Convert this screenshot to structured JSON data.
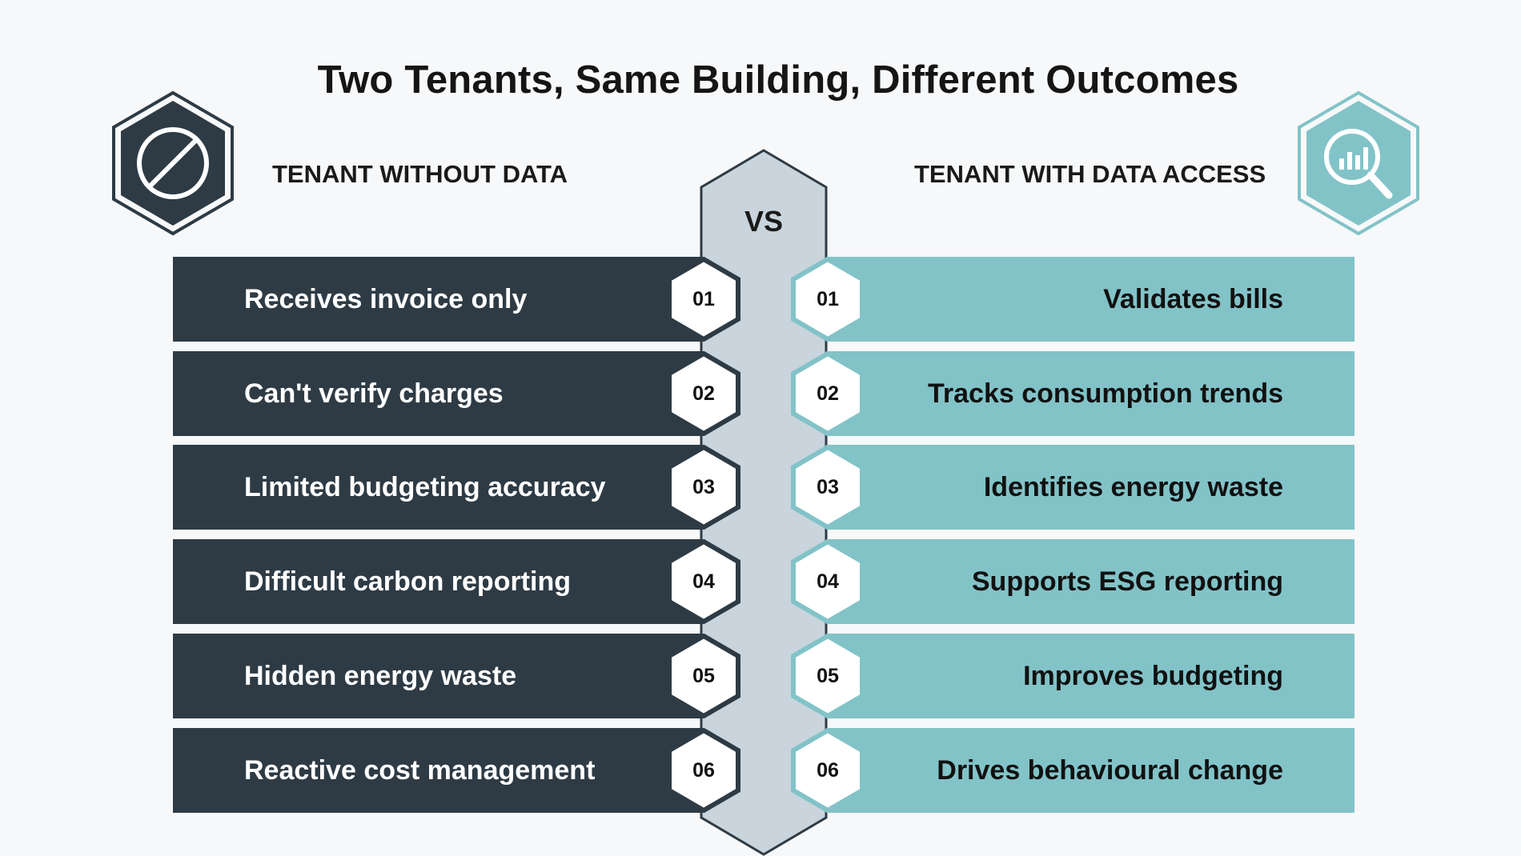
{
  "title": "Two Tenants, Same Building, Different Outcomes",
  "vs_label": "VS",
  "left": {
    "heading": "TENANT WITHOUT DATA",
    "icon": "prohibited-icon",
    "items": [
      {
        "num": "01",
        "label": "Receives invoice only"
      },
      {
        "num": "02",
        "label": "Can't verify charges"
      },
      {
        "num": "03",
        "label": "Limited budgeting accuracy"
      },
      {
        "num": "04",
        "label": "Difficult carbon reporting"
      },
      {
        "num": "05",
        "label": "Hidden energy waste"
      },
      {
        "num": "06",
        "label": "Reactive cost management"
      }
    ]
  },
  "right": {
    "heading": "TENANT WITH DATA ACCESS",
    "icon": "magnifier-chart-icon",
    "items": [
      {
        "num": "01",
        "label": "Validates bills"
      },
      {
        "num": "02",
        "label": "Tracks consumption trends"
      },
      {
        "num": "03",
        "label": "Identifies energy waste"
      },
      {
        "num": "04",
        "label": "Supports ESG reporting"
      },
      {
        "num": "05",
        "label": "Improves budgeting"
      },
      {
        "num": "06",
        "label": "Drives behavioural change"
      }
    ]
  },
  "colors": {
    "dark": "#2e3b45",
    "teal": "#82c3c8",
    "vs_fill": "#c9d4dc",
    "background": "#f7f8f9"
  }
}
